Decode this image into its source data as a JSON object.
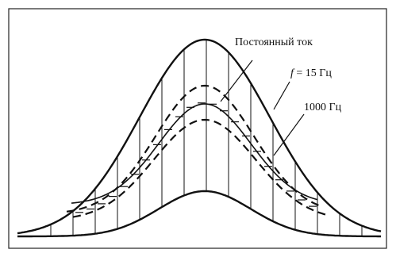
{
  "labels": {
    "dc": "Постоянный ток",
    "f_symbol": "f",
    "f15": " = 15 Гц",
    "f1000": "1000 Гц"
  },
  "colors": {
    "stroke": "#111111",
    "background": "#ffffff",
    "frame": "#222222"
  }
}
